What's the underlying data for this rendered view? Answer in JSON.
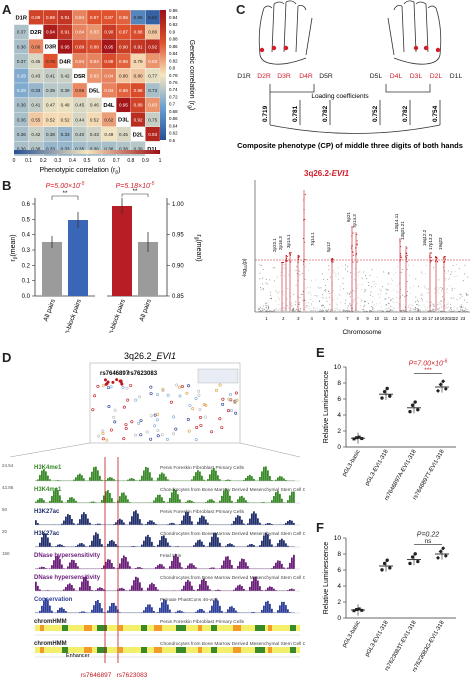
{
  "panels": {
    "A": {
      "letter": "A",
      "labels": [
        "D1R",
        "D2R",
        "D3R",
        "D4R",
        "D5R",
        "D5L",
        "D4L",
        "D3L",
        "D2L",
        "D1L"
      ],
      "scale_ticks": [
        "0.96",
        "0.94",
        "0.92",
        "0.9",
        "0.88",
        "0.86",
        "0.84",
        "0.82",
        "0.8",
        "0.78",
        "0.76",
        "0.74",
        "0.72",
        "0.7",
        "0.68",
        "0.66",
        "0.64",
        "0.62",
        "0.6"
      ],
      "x_ticks": [
        "0",
        "0.1",
        "0.2",
        "0.3",
        "0.4",
        "0.5",
        "0.6",
        "0.7",
        "0.8",
        "0.9",
        "1"
      ],
      "xlabel": "Phenotypic correlation (r",
      "xlabel_sub": "p",
      "ylabel": "Genetic correlation (r",
      "ylabel_sub": "g",
      "matrix_values": [
        [
          "",
          "0.89",
          "0.89",
          "0.91",
          "0.84",
          "0.87",
          "0.87",
          "0.86",
          "0.66",
          "0.62"
        ],
        [
          "0.37",
          "",
          "0.94",
          "0.91",
          "0.84",
          "0.83",
          "0.90",
          "0.87",
          "0.88",
          "0.80"
        ],
        [
          "0.36",
          "0.66",
          "",
          "0.95",
          "0.89",
          "0.88",
          "0.95",
          "0.90",
          "0.91",
          "0.92"
        ],
        [
          "0.37",
          "0.45",
          "0.75",
          "",
          "0.84",
          "0.84",
          "0.88",
          "0.86",
          "0.79",
          "0.83"
        ],
        [
          "0.29",
          "0.43",
          "0.41",
          "0.42",
          "",
          "0.83",
          "0.84",
          "0.80",
          "0.80",
          "0.77"
        ],
        [
          "0.29",
          "0.33",
          "0.39",
          "0.39",
          "0.66",
          "",
          "0.84",
          "0.86",
          "0.88",
          "0.73"
        ],
        [
          "0.36",
          "0.41",
          "0.47",
          "0.48",
          "0.45",
          "0.46",
          "",
          "0.95",
          "0.89",
          "0.83"
        ],
        [
          "0.36",
          "0.55",
          "0.52",
          "0.52",
          "0.44",
          "0.52",
          "0.62",
          "",
          "0.92",
          "0.75"
        ],
        [
          "0.36",
          "0.42",
          "0.38",
          "0.33",
          "0.40",
          "0.43",
          "0.49",
          "0.45",
          "",
          "0.93"
        ],
        [
          "0.36",
          "0.38",
          "0.33",
          "0.33",
          "0.35",
          "0.36",
          "0.36",
          "0.38",
          "0.39",
          ""
        ]
      ]
    },
    "B": {
      "letter": "B",
      "left_p": "P=5.00×10",
      "left_p_exp": "-5",
      "right_p": "P=5.18×10",
      "right_p_exp": "-5",
      "sig": "**",
      "left_ylabel": "r",
      "left_ylabel_sub": "p",
      "left_ylabel_tail": "(mean)",
      "right_ylabel": "r",
      "right_ylabel_sub": "g",
      "right_ylabel_tail": "(mean)",
      "left_ticks": [
        "0.6",
        "0.5",
        "0.4",
        "0.3",
        "0.2",
        "0.1",
        "0.0"
      ],
      "right_ticks": [
        "1.00",
        "0.95",
        "0.90",
        "0.85"
      ],
      "categories": [
        "All pairs",
        "Pattern-block pairs",
        "Pattern-block pairs",
        "All pairs"
      ]
    },
    "C": {
      "letter": "C",
      "right_digits": [
        "D1R",
        "D2R",
        "D3R",
        "D4R",
        "D5R"
      ],
      "left_digits": [
        "D5L",
        "D4L",
        "D3L",
        "D2L",
        "D1L"
      ],
      "loading_label": "Loading coefficients",
      "coefficients": [
        "0.719",
        "0.781",
        "0.782",
        "0.752",
        "0.782",
        "0.754"
      ],
      "composite": "Composite phenotype (CP) of middle three digits of both hands",
      "top_locus": "3q26.2-",
      "top_locus_gene": "EVI1",
      "manhattan_labels": [
        "2p23.1",
        "2p16.3",
        "3p14.1",
        "5p12",
        "6p21",
        "7p14.3",
        "13q14.11",
        "13q31.21",
        "16q12.2",
        "17p13.2",
        "19q23",
        "7q14.1"
      ],
      "ylabel": "-log",
      "ylabel_sub": "10",
      "ylabel_tail": "(p)",
      "xlabel": "Chromosome",
      "chrom_ticks": [
        "1",
        "2",
        "3",
        "4",
        "5",
        "6",
        "7",
        "8",
        "9",
        "10",
        "11",
        "12",
        "13",
        "14",
        "15",
        "16",
        "17",
        "18",
        "19",
        "20",
        "21",
        "22",
        "23"
      ]
    },
    "D": {
      "letter": "D",
      "title": "3q26.2_",
      "title_gene": "EVI1",
      "snp1": "rs7646897",
      "snp2": "rs7623083",
      "tracks": [
        {
          "name": "H3K4me1",
          "desc": "Penis Foreskin Fibroblast Primary Cells",
          "color": "#3a8a2a"
        },
        {
          "name": "H3K4me1",
          "desc": "Chondrocytes from Bone Marrow Derived Mesenchymal Stem Cell Cultured Cells",
          "color": "#3a8a2a"
        },
        {
          "name": "H3K27ac",
          "desc": "Penis Foreskin Fibroblast Primary Cells",
          "color": "#22306e"
        },
        {
          "name": "H3K27ac",
          "desc": "Chondrocytes from Bone Marrow Derived Mesenchymal Stem Cell Cultured Cells",
          "color": "#22306e"
        },
        {
          "name": "DNase hypersensitivity",
          "desc": "Fetal Skin",
          "color": "#6a1f7a"
        },
        {
          "name": "DNase hypersensitivity",
          "desc": "Chondrocytes from Bone Marrow Derived Mesenchymal Stem Cell Cultured Cells",
          "color": "#6a1f7a"
        },
        {
          "name": "Conservation",
          "desc": "Primate PhastCons 46-way",
          "color": "#2d3f9a"
        },
        {
          "name": "chromHMM",
          "desc": "Penis Foreskin Fibroblast Primary Cells",
          "color": "#222222"
        },
        {
          "name": "chromHMM",
          "desc": "Chondrocytes from Bone Marrow Derived Mesenchymal Stem Cell Cultured Cells",
          "color": "#222222"
        }
      ],
      "enhancer": "Enhancer",
      "bottom_snp1": "rs7646897",
      "bottom_snp2": "rs7623083",
      "scale_vals": [
        "24.54",
        "43.86",
        "50",
        "20",
        "150"
      ]
    },
    "E": {
      "letter": "E",
      "p": "P=7.00×10",
      "p_exp": "-6",
      "sig": "***",
      "ylabel": "Relative Luminescence",
      "ticks": [
        "10",
        "8",
        "6",
        "4",
        "2",
        "0"
      ],
      "categories": [
        "pGL3-basic",
        "pGL3-EVI1-318",
        "rs7646897A-EVI1-318",
        "rs7646897T-EVI1-318"
      ],
      "means": [
        1.1,
        6.6,
        4.9,
        7.5
      ]
    },
    "F": {
      "letter": "F",
      "p": "P=0.22",
      "sig": "ns",
      "ylabel": "Relative Luminescence",
      "ticks": [
        "10",
        "8",
        "6",
        "4",
        "2",
        "0"
      ],
      "categories": [
        "pGL3-basic",
        "pGL3-EVI1-318",
        "rs7623083T-EVI1-318",
        "rs7623083G-EVI1-318"
      ],
      "means": [
        1.0,
        6.5,
        7.3,
        8.0
      ]
    }
  },
  "colors": {
    "heat_high": "#b0121b",
    "heat_mid": "#f2e6c4",
    "heat_low": "#2e5fa6",
    "red_bar": "#b81d25",
    "blue_bar": "#3a66b8",
    "grey_bar": "#9b9b9b",
    "accent_red": "#d21e2b"
  }
}
